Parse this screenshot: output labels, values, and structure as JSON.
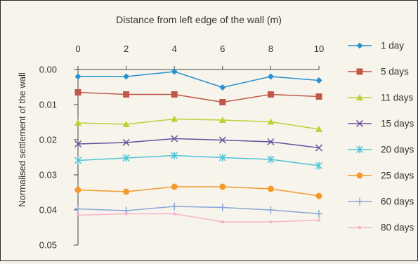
{
  "chart_data": {
    "type": "line",
    "title": "Distance from left edge of the wall (m)",
    "xlabel": "Distance from left edge of the wall (m)",
    "ylabel": "Normalised settlement of the wall",
    "x": [
      0,
      2,
      4,
      6,
      8,
      10
    ],
    "x_ticks": [
      "0",
      "2",
      "4",
      "6",
      "8",
      "10"
    ],
    "y_ticks": [
      "0.00",
      "0.01",
      "0.02",
      "0.03",
      "0.04",
      "0.05"
    ],
    "xlim": [
      0,
      10
    ],
    "ylim": [
      0,
      0.05
    ],
    "y_inverted": true,
    "x_axis_position": "top",
    "grid": false,
    "legend_position": "right",
    "series": [
      {
        "name": "1 day",
        "color": "#2a8fd0",
        "marker": "diamond",
        "values": [
          0.002,
          0.002,
          0.0006,
          0.0051,
          0.002,
          0.0031
        ]
      },
      {
        "name": "5 days",
        "color": "#c0584a",
        "marker": "square",
        "values": [
          0.0065,
          0.0071,
          0.0071,
          0.0093,
          0.0071,
          0.0077
        ]
      },
      {
        "name": "11 days",
        "color": "#b7d335",
        "marker": "triangle",
        "values": [
          0.0152,
          0.0156,
          0.0141,
          0.0144,
          0.0149,
          0.017
        ]
      },
      {
        "name": "15 days",
        "color": "#6a4ea0",
        "marker": "x",
        "values": [
          0.0212,
          0.0208,
          0.0197,
          0.0201,
          0.0206,
          0.0223
        ]
      },
      {
        "name": "20 days",
        "color": "#4dc3d6",
        "marker": "asterisk",
        "values": [
          0.0259,
          0.0252,
          0.0245,
          0.0251,
          0.0256,
          0.0274
        ]
      },
      {
        "name": "25 days",
        "color": "#f39a2c",
        "marker": "circle",
        "values": [
          0.0343,
          0.0348,
          0.0334,
          0.0334,
          0.034,
          0.036
        ]
      },
      {
        "name": "60 days",
        "color": "#8aa6d6",
        "marker": "plus",
        "values": [
          0.0397,
          0.0402,
          0.039,
          0.0393,
          0.04,
          0.0411
        ]
      },
      {
        "name": "80 days",
        "color": "#f3b4cc",
        "marker": "dot",
        "values": [
          0.0415,
          0.0411,
          0.0411,
          0.0434,
          0.0434,
          0.0429
        ]
      }
    ]
  }
}
